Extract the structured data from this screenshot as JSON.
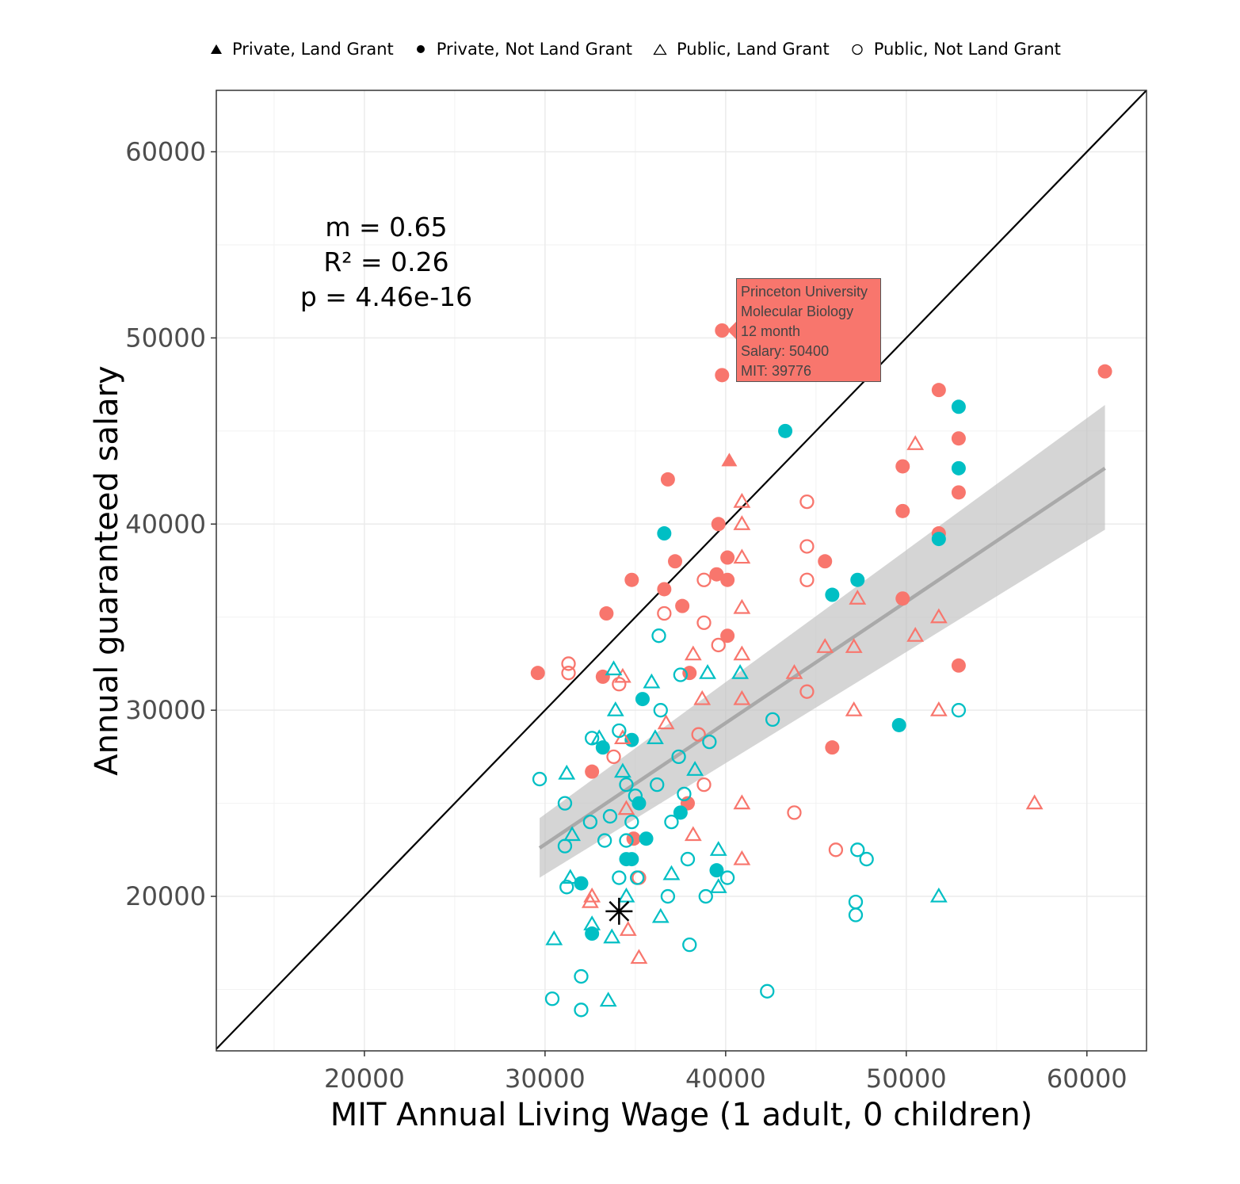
{
  "legend": {
    "items": [
      {
        "label": "Private, Land Grant",
        "icon": "filled-triangle-icon"
      },
      {
        "label": "Private, Not Land Grant",
        "icon": "filled-circle-icon"
      },
      {
        "label": "Public, Land Grant",
        "icon": "open-triangle-icon"
      },
      {
        "label": "Public, Not Land Grant",
        "icon": "open-circle-icon"
      }
    ]
  },
  "stats": {
    "m": "m = 0.65",
    "r2": "R² = 0.26",
    "p": "p = 4.46e-16"
  },
  "tooltip": {
    "line1": "Princeton University",
    "line2": "Molecular Biology",
    "line3": "12 month",
    "line4": "Salary: 50400",
    "line5": "MIT: 39776"
  },
  "colors": {
    "red": "#F8766D",
    "teal": "#00BFC4",
    "band": "#BEBEBE",
    "fit": "#A9A9A9"
  },
  "chart_data": {
    "type": "scatter",
    "xlabel": "MIT Annual Living Wage (1 adult, 0 children)",
    "ylabel": "Annual guaranteed salary",
    "xlim": [
      11800,
      63300
    ],
    "ylim": [
      11700,
      63300
    ],
    "xticks": [
      20000,
      30000,
      40000,
      50000,
      60000
    ],
    "yticks": [
      20000,
      30000,
      40000,
      50000,
      60000
    ],
    "grid": true,
    "legend_position": "top",
    "reference_line": {
      "type": "y=x"
    },
    "fit_line": {
      "x": [
        29700,
        61000
      ],
      "y": [
        22600,
        43000
      ],
      "band_lower": [
        21000,
        39700
      ],
      "band_upper": [
        24200,
        46400
      ]
    },
    "highlight": {
      "x": 34100,
      "y": 19200,
      "marker": "asterisk"
    },
    "series": [
      {
        "name": "Private, Land Grant",
        "marker": "filled-triangle",
        "points": [
          {
            "x": 40200,
            "y": 43400,
            "c": "red"
          }
        ]
      },
      {
        "name": "Private, Not Land Grant",
        "marker": "filled-circle",
        "points": [
          {
            "x": 29600,
            "y": 32000,
            "c": "red"
          },
          {
            "x": 32600,
            "y": 26700,
            "c": "red"
          },
          {
            "x": 33200,
            "y": 31800,
            "c": "red"
          },
          {
            "x": 33400,
            "y": 35200,
            "c": "red"
          },
          {
            "x": 34800,
            "y": 37000,
            "c": "red"
          },
          {
            "x": 36600,
            "y": 36500,
            "c": "red"
          },
          {
            "x": 36800,
            "y": 42400,
            "c": "red"
          },
          {
            "x": 37200,
            "y": 38000,
            "c": "red"
          },
          {
            "x": 37600,
            "y": 35600,
            "c": "red"
          },
          {
            "x": 38000,
            "y": 32000,
            "c": "red"
          },
          {
            "x": 37900,
            "y": 25000,
            "c": "red"
          },
          {
            "x": 39500,
            "y": 37300,
            "c": "red"
          },
          {
            "x": 39600,
            "y": 40000,
            "c": "red"
          },
          {
            "x": 39800,
            "y": 50400,
            "c": "red"
          },
          {
            "x": 39800,
            "y": 48000,
            "c": "red"
          },
          {
            "x": 40100,
            "y": 38200,
            "c": "red"
          },
          {
            "x": 40100,
            "y": 37000,
            "c": "red"
          },
          {
            "x": 40100,
            "y": 34000,
            "c": "red"
          },
          {
            "x": 45500,
            "y": 38000,
            "c": "red"
          },
          {
            "x": 45900,
            "y": 28000,
            "c": "red"
          },
          {
            "x": 49800,
            "y": 43100,
            "c": "red"
          },
          {
            "x": 49800,
            "y": 40700,
            "c": "red"
          },
          {
            "x": 49800,
            "y": 36000,
            "c": "red"
          },
          {
            "x": 51800,
            "y": 47200,
            "c": "red"
          },
          {
            "x": 51800,
            "y": 39500,
            "c": "red"
          },
          {
            "x": 52900,
            "y": 44600,
            "c": "red"
          },
          {
            "x": 52900,
            "y": 41700,
            "c": "red"
          },
          {
            "x": 52900,
            "y": 32400,
            "c": "red"
          },
          {
            "x": 61000,
            "y": 48200,
            "c": "red"
          },
          {
            "x": 34900,
            "y": 23100,
            "c": "red"
          },
          {
            "x": 32000,
            "y": 20700,
            "c": "teal"
          },
          {
            "x": 32600,
            "y": 18000,
            "c": "teal"
          },
          {
            "x": 33200,
            "y": 28000,
            "c": "teal"
          },
          {
            "x": 34500,
            "y": 22000,
            "c": "teal"
          },
          {
            "x": 34800,
            "y": 22000,
            "c": "teal"
          },
          {
            "x": 34800,
            "y": 28400,
            "c": "teal"
          },
          {
            "x": 35400,
            "y": 30600,
            "c": "teal"
          },
          {
            "x": 35600,
            "y": 23100,
            "c": "teal"
          },
          {
            "x": 35200,
            "y": 25000,
            "c": "teal"
          },
          {
            "x": 36600,
            "y": 39500,
            "c": "teal"
          },
          {
            "x": 37500,
            "y": 24500,
            "c": "teal"
          },
          {
            "x": 39500,
            "y": 21400,
            "c": "teal"
          },
          {
            "x": 43300,
            "y": 45000,
            "c": "teal"
          },
          {
            "x": 45900,
            "y": 36200,
            "c": "teal"
          },
          {
            "x": 47300,
            "y": 37000,
            "c": "teal"
          },
          {
            "x": 49600,
            "y": 29200,
            "c": "teal"
          },
          {
            "x": 51800,
            "y": 39200,
            "c": "teal"
          },
          {
            "x": 52900,
            "y": 46300,
            "c": "teal"
          },
          {
            "x": 52900,
            "y": 43000,
            "c": "teal"
          }
        ]
      },
      {
        "name": "Public, Land Grant",
        "marker": "open-triangle",
        "points": [
          {
            "x": 32500,
            "y": 19700,
            "c": "red"
          },
          {
            "x": 32600,
            "y": 20000,
            "c": "red"
          },
          {
            "x": 34300,
            "y": 31800,
            "c": "red"
          },
          {
            "x": 34300,
            "y": 28500,
            "c": "red"
          },
          {
            "x": 34500,
            "y": 24700,
            "c": "red"
          },
          {
            "x": 34600,
            "y": 18200,
            "c": "red"
          },
          {
            "x": 35200,
            "y": 16700,
            "c": "red"
          },
          {
            "x": 36700,
            "y": 29300,
            "c": "red"
          },
          {
            "x": 38200,
            "y": 33000,
            "c": "red"
          },
          {
            "x": 38200,
            "y": 23300,
            "c": "red"
          },
          {
            "x": 38700,
            "y": 30600,
            "c": "red"
          },
          {
            "x": 40900,
            "y": 41200,
            "c": "red"
          },
          {
            "x": 40900,
            "y": 40000,
            "c": "red"
          },
          {
            "x": 40900,
            "y": 38200,
            "c": "red"
          },
          {
            "x": 40900,
            "y": 35500,
            "c": "red"
          },
          {
            "x": 40900,
            "y": 33000,
            "c": "red"
          },
          {
            "x": 40900,
            "y": 30600,
            "c": "red"
          },
          {
            "x": 40900,
            "y": 25000,
            "c": "red"
          },
          {
            "x": 40900,
            "y": 22000,
            "c": "red"
          },
          {
            "x": 43800,
            "y": 32000,
            "c": "red"
          },
          {
            "x": 45500,
            "y": 33400,
            "c": "red"
          },
          {
            "x": 47100,
            "y": 33400,
            "c": "red"
          },
          {
            "x": 47100,
            "y": 30000,
            "c": "red"
          },
          {
            "x": 47300,
            "y": 36000,
            "c": "red"
          },
          {
            "x": 50500,
            "y": 34000,
            "c": "red"
          },
          {
            "x": 50500,
            "y": 44300,
            "c": "red"
          },
          {
            "x": 51800,
            "y": 35000,
            "c": "red"
          },
          {
            "x": 51800,
            "y": 30000,
            "c": "red"
          },
          {
            "x": 57100,
            "y": 25000,
            "c": "red"
          },
          {
            "x": 30500,
            "y": 17700,
            "c": "teal"
          },
          {
            "x": 31200,
            "y": 26600,
            "c": "teal"
          },
          {
            "x": 31400,
            "y": 21000,
            "c": "teal"
          },
          {
            "x": 31500,
            "y": 23300,
            "c": "teal"
          },
          {
            "x": 32600,
            "y": 18500,
            "c": "teal"
          },
          {
            "x": 33000,
            "y": 28500,
            "c": "teal"
          },
          {
            "x": 33500,
            "y": 14400,
            "c": "teal"
          },
          {
            "x": 33700,
            "y": 17800,
            "c": "teal"
          },
          {
            "x": 33800,
            "y": 32200,
            "c": "teal"
          },
          {
            "x": 33900,
            "y": 30000,
            "c": "teal"
          },
          {
            "x": 34300,
            "y": 26700,
            "c": "teal"
          },
          {
            "x": 34500,
            "y": 20000,
            "c": "teal"
          },
          {
            "x": 35900,
            "y": 31500,
            "c": "teal"
          },
          {
            "x": 36100,
            "y": 28500,
            "c": "teal"
          },
          {
            "x": 36400,
            "y": 18900,
            "c": "teal"
          },
          {
            "x": 37000,
            "y": 21200,
            "c": "teal"
          },
          {
            "x": 38300,
            "y": 26800,
            "c": "teal"
          },
          {
            "x": 39000,
            "y": 32000,
            "c": "teal"
          },
          {
            "x": 39600,
            "y": 22500,
            "c": "teal"
          },
          {
            "x": 39600,
            "y": 20500,
            "c": "teal"
          },
          {
            "x": 40800,
            "y": 32000,
            "c": "teal"
          },
          {
            "x": 51800,
            "y": 20000,
            "c": "teal"
          }
        ]
      },
      {
        "name": "Public, Not Land Grant",
        "marker": "open-circle",
        "points": [
          {
            "x": 31300,
            "y": 32500,
            "c": "red"
          },
          {
            "x": 31300,
            "y": 32000,
            "c": "red"
          },
          {
            "x": 33800,
            "y": 27500,
            "c": "red"
          },
          {
            "x": 34100,
            "y": 31400,
            "c": "red"
          },
          {
            "x": 35200,
            "y": 21000,
            "c": "red"
          },
          {
            "x": 36600,
            "y": 35200,
            "c": "red"
          },
          {
            "x": 38500,
            "y": 28700,
            "c": "red"
          },
          {
            "x": 38800,
            "y": 37000,
            "c": "red"
          },
          {
            "x": 38800,
            "y": 34700,
            "c": "red"
          },
          {
            "x": 38800,
            "y": 26000,
            "c": "red"
          },
          {
            "x": 39600,
            "y": 33500,
            "c": "red"
          },
          {
            "x": 43800,
            "y": 24500,
            "c": "red"
          },
          {
            "x": 44500,
            "y": 41200,
            "c": "red"
          },
          {
            "x": 44500,
            "y": 38800,
            "c": "red"
          },
          {
            "x": 44500,
            "y": 37000,
            "c": "red"
          },
          {
            "x": 44500,
            "y": 31000,
            "c": "red"
          },
          {
            "x": 46100,
            "y": 22500,
            "c": "red"
          },
          {
            "x": 29700,
            "y": 26300,
            "c": "teal"
          },
          {
            "x": 30400,
            "y": 14500,
            "c": "teal"
          },
          {
            "x": 31100,
            "y": 25000,
            "c": "teal"
          },
          {
            "x": 31100,
            "y": 22700,
            "c": "teal"
          },
          {
            "x": 31200,
            "y": 20500,
            "c": "teal"
          },
          {
            "x": 32000,
            "y": 15700,
            "c": "teal"
          },
          {
            "x": 32000,
            "y": 13900,
            "c": "teal"
          },
          {
            "x": 32500,
            "y": 24000,
            "c": "teal"
          },
          {
            "x": 32600,
            "y": 28500,
            "c": "teal"
          },
          {
            "x": 33300,
            "y": 23000,
            "c": "teal"
          },
          {
            "x": 33600,
            "y": 24300,
            "c": "teal"
          },
          {
            "x": 34100,
            "y": 28900,
            "c": "teal"
          },
          {
            "x": 34100,
            "y": 21000,
            "c": "teal"
          },
          {
            "x": 34500,
            "y": 26000,
            "c": "teal"
          },
          {
            "x": 34500,
            "y": 23000,
            "c": "teal"
          },
          {
            "x": 34800,
            "y": 24000,
            "c": "teal"
          },
          {
            "x": 35000,
            "y": 25400,
            "c": "teal"
          },
          {
            "x": 35100,
            "y": 21000,
            "c": "teal"
          },
          {
            "x": 36300,
            "y": 34000,
            "c": "teal"
          },
          {
            "x": 36400,
            "y": 30000,
            "c": "teal"
          },
          {
            "x": 36200,
            "y": 26000,
            "c": "teal"
          },
          {
            "x": 36800,
            "y": 20000,
            "c": "teal"
          },
          {
            "x": 37000,
            "y": 24000,
            "c": "teal"
          },
          {
            "x": 37400,
            "y": 27500,
            "c": "teal"
          },
          {
            "x": 37500,
            "y": 31900,
            "c": "teal"
          },
          {
            "x": 37700,
            "y": 25500,
            "c": "teal"
          },
          {
            "x": 37900,
            "y": 22000,
            "c": "teal"
          },
          {
            "x": 38000,
            "y": 17400,
            "c": "teal"
          },
          {
            "x": 38900,
            "y": 20000,
            "c": "teal"
          },
          {
            "x": 39100,
            "y": 28300,
            "c": "teal"
          },
          {
            "x": 40100,
            "y": 21000,
            "c": "teal"
          },
          {
            "x": 42300,
            "y": 14900,
            "c": "teal"
          },
          {
            "x": 42600,
            "y": 29500,
            "c": "teal"
          },
          {
            "x": 47200,
            "y": 19700,
            "c": "teal"
          },
          {
            "x": 47200,
            "y": 19000,
            "c": "teal"
          },
          {
            "x": 47300,
            "y": 22500,
            "c": "teal"
          },
          {
            "x": 47800,
            "y": 22000,
            "c": "teal"
          },
          {
            "x": 52900,
            "y": 30000,
            "c": "teal"
          }
        ]
      }
    ]
  }
}
